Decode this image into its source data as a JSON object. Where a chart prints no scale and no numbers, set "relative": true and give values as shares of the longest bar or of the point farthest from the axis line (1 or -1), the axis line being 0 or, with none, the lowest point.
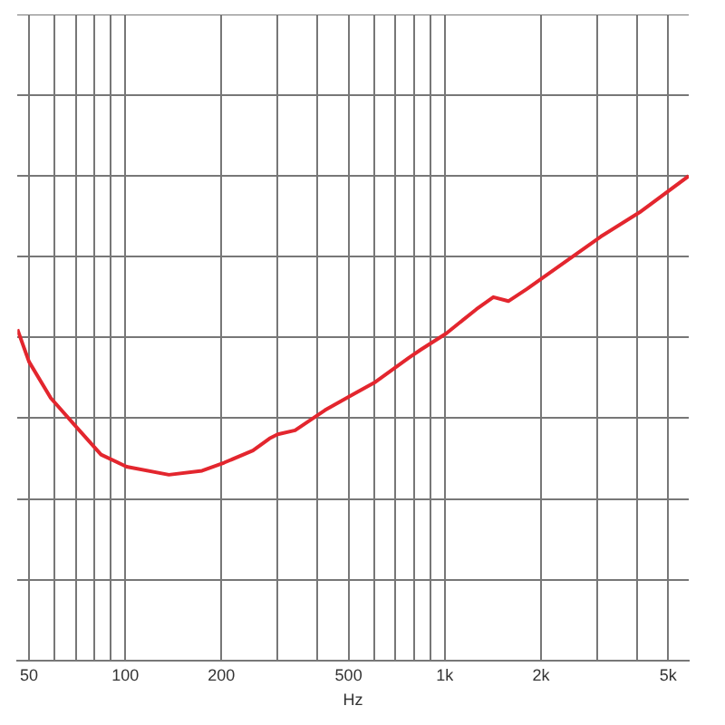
{
  "chart_data": {
    "type": "line",
    "xlabel": "Hz",
    "log": "x",
    "relative": true,
    "grid": true,
    "legend": false,
    "marker": "none",
    "line_style": "solid",
    "xlim": [
      46,
      5800
    ],
    "xticks": [
      50,
      {
        "value": 60,
        "label": null
      },
      {
        "value": 70,
        "label": null
      },
      {
        "value": 80,
        "label": null
      },
      {
        "value": 90,
        "label": null
      },
      100,
      200,
      {
        "value": 300,
        "label": null
      },
      {
        "value": 400,
        "label": null
      },
      500,
      {
        "value": 600,
        "label": null
      },
      {
        "value": 700,
        "label": null
      },
      {
        "value": 800,
        "label": null
      },
      {
        "value": 900,
        "label": null
      },
      {
        "value": 1000,
        "label": "1k"
      },
      {
        "value": 2000,
        "label": "2k"
      },
      {
        "value": 3000,
        "label": null
      },
      {
        "value": 4000,
        "label": null
      },
      {
        "value": 5000,
        "label": "5k"
      }
    ],
    "series": [
      {
        "color": "#e3262e",
        "x": [
          46,
          50,
          58.5,
          70,
          84,
          101,
          137,
          174,
          204,
          251,
          283,
          300,
          340,
          422,
          519,
          607,
          773,
          842,
          1010,
          1256,
          1419,
          1581,
          1807,
          3078,
          4070,
          5800
        ],
        "values": [
          0.62,
          0.54,
          0.45,
          0.38,
          0.31,
          0.28,
          0.26,
          0.27,
          0.29,
          0.32,
          0.35,
          0.36,
          0.37,
          0.42,
          0.46,
          0.49,
          0.55,
          0.57,
          0.61,
          0.67,
          0.7,
          0.69,
          0.72,
          0.85,
          0.91,
          1.0
        ]
      }
    ]
  }
}
